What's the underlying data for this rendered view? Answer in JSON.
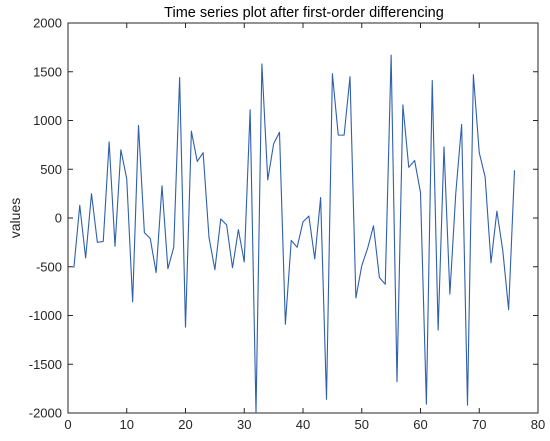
{
  "chart_data": {
    "type": "line",
    "title": "Time series plot after first-order differencing",
    "xlabel": "",
    "ylabel": "values",
    "xlim": [
      0,
      80
    ],
    "ylim": [
      -2000,
      2000
    ],
    "xticks": [
      0,
      10,
      20,
      30,
      40,
      50,
      60,
      70,
      80
    ],
    "yticks": [
      -2000,
      -1500,
      -1000,
      -500,
      0,
      500,
      1000,
      1500,
      2000
    ],
    "grid": false,
    "series": [
      {
        "color": "#2f5fad",
        "x": [
          1,
          2,
          3,
          4,
          5,
          6,
          7,
          8,
          9,
          10,
          11,
          12,
          13,
          14,
          15,
          16,
          17,
          18,
          19,
          20,
          21,
          22,
          23,
          24,
          25,
          26,
          27,
          28,
          29,
          30,
          31,
          32,
          33,
          34,
          35,
          36,
          37,
          38,
          39,
          40,
          41,
          42,
          43,
          44,
          45,
          46,
          47,
          48,
          49,
          50,
          51,
          52,
          53,
          54,
          55,
          56,
          57,
          58,
          59,
          60,
          61,
          62,
          63,
          64,
          65,
          66,
          67,
          68,
          69,
          70,
          71,
          72,
          73,
          74,
          75,
          76
        ],
        "values": [
          -510,
          130,
          -410,
          250,
          -250,
          -240,
          780,
          -290,
          700,
          400,
          -860,
          950,
          -150,
          -210,
          -560,
          330,
          -520,
          -300,
          1440,
          -1120,
          890,
          580,
          670,
          -200,
          -530,
          -10,
          -70,
          -510,
          -120,
          -450,
          1110,
          -2000,
          1580,
          390,
          760,
          880,
          -1090,
          -230,
          -300,
          -40,
          20,
          -420,
          210,
          -1860,
          1480,
          850,
          850,
          1450,
          -820,
          -490,
          -310,
          -80,
          -610,
          -680,
          1670,
          -1680,
          1160,
          520,
          590,
          260,
          -1910,
          1410,
          -1150,
          730,
          -780,
          250,
          960,
          -1920,
          1470,
          670,
          420,
          -460,
          70,
          -330,
          -940,
          490
        ]
      }
    ]
  }
}
